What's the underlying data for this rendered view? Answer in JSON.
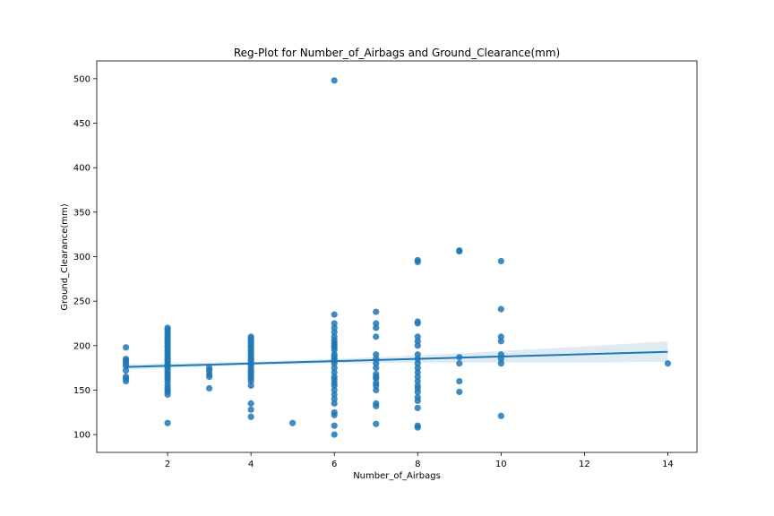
{
  "chart_data": {
    "type": "scatter",
    "title": "Reg-Plot for Number_of_Airbags and Ground_Clearance(mm)",
    "xlabel": "Number_of_Airbags",
    "ylabel": "Ground_Clearance(mm)",
    "xlim": [
      0.3,
      14.7
    ],
    "ylim": [
      80,
      520
    ],
    "xticks": [
      2,
      4,
      6,
      8,
      10,
      12,
      14
    ],
    "yticks": [
      100,
      150,
      200,
      250,
      300,
      350,
      400,
      450,
      500
    ],
    "grid": false,
    "point_color": "#1f77b4",
    "points": [
      [
        1,
        160
      ],
      [
        1,
        163
      ],
      [
        1,
        165
      ],
      [
        1,
        172
      ],
      [
        1,
        177
      ],
      [
        1,
        180
      ],
      [
        1,
        183
      ],
      [
        1,
        185
      ],
      [
        1,
        198
      ],
      [
        2,
        113
      ],
      [
        2,
        145
      ],
      [
        2,
        148
      ],
      [
        2,
        150
      ],
      [
        2,
        153
      ],
      [
        2,
        156
      ],
      [
        2,
        160
      ],
      [
        2,
        163
      ],
      [
        2,
        165
      ],
      [
        2,
        168
      ],
      [
        2,
        170
      ],
      [
        2,
        173
      ],
      [
        2,
        176
      ],
      [
        2,
        178
      ],
      [
        2,
        180
      ],
      [
        2,
        183
      ],
      [
        2,
        185
      ],
      [
        2,
        188
      ],
      [
        2,
        190
      ],
      [
        2,
        193
      ],
      [
        2,
        195
      ],
      [
        2,
        198
      ],
      [
        2,
        200
      ],
      [
        2,
        203
      ],
      [
        2,
        205
      ],
      [
        2,
        208
      ],
      [
        2,
        210
      ],
      [
        2,
        213
      ],
      [
        2,
        215
      ],
      [
        2,
        218
      ],
      [
        2,
        220
      ],
      [
        3,
        152
      ],
      [
        3,
        165
      ],
      [
        3,
        168
      ],
      [
        3,
        172
      ],
      [
        3,
        175
      ],
      [
        4,
        120
      ],
      [
        4,
        128
      ],
      [
        4,
        135
      ],
      [
        4,
        155
      ],
      [
        4,
        160
      ],
      [
        4,
        163
      ],
      [
        4,
        165
      ],
      [
        4,
        168
      ],
      [
        4,
        170
      ],
      [
        4,
        172
      ],
      [
        4,
        175
      ],
      [
        4,
        178
      ],
      [
        4,
        180
      ],
      [
        4,
        183
      ],
      [
        4,
        185
      ],
      [
        4,
        188
      ],
      [
        4,
        190
      ],
      [
        4,
        193
      ],
      [
        4,
        195
      ],
      [
        4,
        198
      ],
      [
        4,
        200
      ],
      [
        4,
        203
      ],
      [
        4,
        205
      ],
      [
        4,
        208
      ],
      [
        4,
        210
      ],
      [
        5,
        113
      ],
      [
        6,
        100
      ],
      [
        6,
        110
      ],
      [
        6,
        122
      ],
      [
        6,
        125
      ],
      [
        6,
        135
      ],
      [
        6,
        140
      ],
      [
        6,
        145
      ],
      [
        6,
        150
      ],
      [
        6,
        155
      ],
      [
        6,
        158
      ],
      [
        6,
        162
      ],
      [
        6,
        165
      ],
      [
        6,
        170
      ],
      [
        6,
        175
      ],
      [
        6,
        180
      ],
      [
        6,
        183
      ],
      [
        6,
        185
      ],
      [
        6,
        188
      ],
      [
        6,
        190
      ],
      [
        6,
        195
      ],
      [
        6,
        198
      ],
      [
        6,
        200
      ],
      [
        6,
        203
      ],
      [
        6,
        206
      ],
      [
        6,
        210
      ],
      [
        6,
        215
      ],
      [
        6,
        220
      ],
      [
        6,
        225
      ],
      [
        6,
        235
      ],
      [
        6,
        498
      ],
      [
        7,
        112
      ],
      [
        7,
        132
      ],
      [
        7,
        135
      ],
      [
        7,
        150
      ],
      [
        7,
        155
      ],
      [
        7,
        158
      ],
      [
        7,
        163
      ],
      [
        7,
        165
      ],
      [
        7,
        168
      ],
      [
        7,
        175
      ],
      [
        7,
        180
      ],
      [
        7,
        185
      ],
      [
        7,
        190
      ],
      [
        7,
        210
      ],
      [
        7,
        220
      ],
      [
        7,
        225
      ],
      [
        7,
        238
      ],
      [
        8,
        108
      ],
      [
        8,
        110
      ],
      [
        8,
        130
      ],
      [
        8,
        138
      ],
      [
        8,
        142
      ],
      [
        8,
        148
      ],
      [
        8,
        152
      ],
      [
        8,
        155
      ],
      [
        8,
        160
      ],
      [
        8,
        165
      ],
      [
        8,
        170
      ],
      [
        8,
        175
      ],
      [
        8,
        180
      ],
      [
        8,
        185
      ],
      [
        8,
        190
      ],
      [
        8,
        200
      ],
      [
        8,
        205
      ],
      [
        8,
        210
      ],
      [
        8,
        225
      ],
      [
        8,
        227
      ],
      [
        8,
        294
      ],
      [
        8,
        296
      ],
      [
        9,
        148
      ],
      [
        9,
        160
      ],
      [
        9,
        180
      ],
      [
        9,
        187
      ],
      [
        9,
        306
      ],
      [
        9,
        307
      ],
      [
        10,
        121
      ],
      [
        10,
        180
      ],
      [
        10,
        185
      ],
      [
        10,
        190
      ],
      [
        10,
        205
      ],
      [
        10,
        210
      ],
      [
        10,
        241
      ],
      [
        10,
        295
      ],
      [
        14,
        180
      ]
    ],
    "regression": {
      "x_start": 1,
      "y_start": 176,
      "x_end": 14,
      "y_end": 193,
      "ci": [
        [
          1,
          173,
          179
        ],
        [
          2,
          175,
          180
        ],
        [
          4,
          178,
          182
        ],
        [
          6,
          180,
          185
        ],
        [
          8,
          181,
          189
        ],
        [
          10,
          181,
          194
        ],
        [
          12,
          181,
          199
        ],
        [
          14,
          182,
          205
        ]
      ]
    }
  }
}
